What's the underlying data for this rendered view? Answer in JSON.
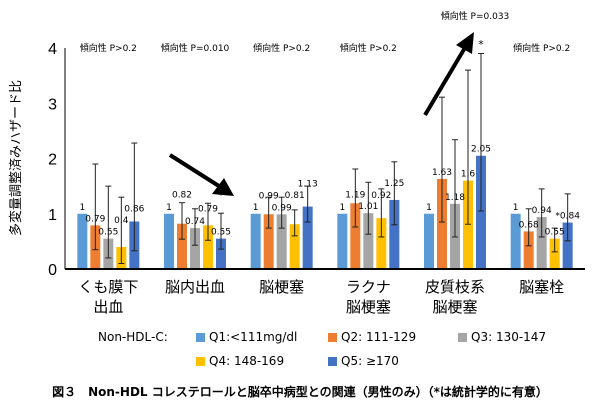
{
  "chart_data": {
    "type": "bar",
    "ylabel": "多変量調整済みハザード比",
    "ylim": [
      0,
      4
    ],
    "yticks": [
      "0",
      "1",
      "2",
      "3",
      "4"
    ],
    "grid": false,
    "legend_placement": "bottom",
    "legend_title": "Non-HDL-C:",
    "categories": [
      [
        "くも膜下",
        "出血"
      ],
      [
        "脳内出血"
      ],
      [
        "脳梗塞"
      ],
      [
        "ラクナ",
        "脳梗塞"
      ],
      [
        "皮質枝系",
        "脳梗塞"
      ],
      [
        "脳塞栓"
      ]
    ],
    "series": [
      {
        "name": "Q1:<111mg/dl",
        "color": "#5B9BD5",
        "values": [
          1,
          1,
          1,
          1,
          1,
          1
        ],
        "ci_low": [
          null,
          null,
          null,
          null,
          null,
          null
        ],
        "ci_high": [
          null,
          null,
          null,
          null,
          null,
          null
        ],
        "labels": [
          "1",
          "1",
          "1",
          "1",
          "1",
          "1"
        ]
      },
      {
        "name": "Q2: 111-129",
        "color": "#ED7D31",
        "values": [
          0.79,
          0.82,
          0.99,
          1.19,
          1.63,
          0.68
        ],
        "ci_low": [
          0.35,
          0.54,
          0.74,
          0.76,
          0.85,
          0.42
        ],
        "ci_high": [
          1.9,
          1.2,
          1.3,
          1.81,
          3.11,
          1.09
        ],
        "labels": [
          "0.79",
          "0.82",
          "0.99",
          "1.19",
          "1.63",
          "0.68"
        ]
      },
      {
        "name": "Q3: 130-147",
        "color": "#A5A5A5",
        "values": [
          0.55,
          0.74,
          0.99,
          1.01,
          1.18,
          0.94
        ],
        "ci_low": [
          0.2,
          0.43,
          0.74,
          0.63,
          0.58,
          0.58
        ],
        "ci_high": [
          1.5,
          1.09,
          1.3,
          1.57,
          2.34,
          1.45
        ],
        "labels": [
          "0.55",
          "0.74",
          "0.99",
          "1.01",
          "1.18",
          "0.94"
        ]
      },
      {
        "name": "Q4: 148-169",
        "color": "#FFC000",
        "values": [
          0.4,
          0.79,
          0.81,
          0.92,
          1.6,
          0.55
        ],
        "ci_low": [
          0.1,
          0.52,
          0.6,
          0.58,
          0.81,
          0.31
        ],
        "ci_high": [
          1.3,
          1.19,
          1.07,
          1.45,
          3.6,
          0.74
        ],
        "labels": [
          "0.4",
          "0.79",
          "0.81",
          "0.92",
          "1.6",
          "0.55"
        ]
      },
      {
        "name": "Q5: ≥170",
        "color": "#4472C4",
        "values": [
          0.86,
          0.55,
          1.13,
          1.25,
          2.05,
          0.84
        ],
        "ci_low": [
          0.33,
          0.36,
          0.85,
          0.8,
          1.05,
          0.51
        ],
        "ci_high": [
          2.28,
          1.01,
          1.5,
          1.94,
          3.9,
          1.36
        ],
        "labels": [
          "0.86",
          "0.55",
          "1.13",
          "1.25",
          "2.05",
          "*0.84"
        ]
      }
    ],
    "annotations": {
      "trend": [
        "傾向性 P>0.2",
        "傾向性 P=0.010",
        "傾向性 P>0.2",
        "傾向性 P>0.2",
        "傾向性 P=0.033",
        "傾向性 P>0.2"
      ],
      "asterisks": [
        "*",
        "*"
      ]
    }
  },
  "caption": "図３　Non-HDL コレステロールと脳卒中病型との関連（男性のみ）（*は統計学的に有意）"
}
